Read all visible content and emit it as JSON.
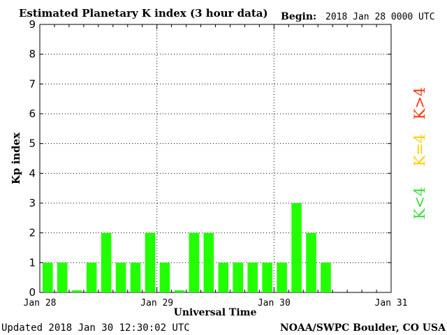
{
  "chart_data": {
    "type": "bar",
    "title": "Estimated Planetary K index (3 hour data)",
    "begin_label": "Begin:",
    "begin_value": "2018 Jan 28 0000 UTC",
    "xlabel": "Universal Time",
    "ylabel": "Kp index",
    "ylim": [
      0,
      9
    ],
    "y_ticks": [
      "0",
      "1",
      "2",
      "3",
      "4",
      "5",
      "6",
      "7",
      "8",
      "9"
    ],
    "x_tick_labels": [
      "Jan 28",
      "Jan 29",
      "Jan 30",
      "Jan 31"
    ],
    "grid": "dotted",
    "bar_color": "#22ff00",
    "values": [
      1,
      1,
      0.07,
      1,
      2,
      1,
      1,
      2,
      1,
      0.07,
      2,
      2,
      1,
      1,
      1,
      1,
      1,
      3,
      2,
      1
    ],
    "legend": [
      {
        "label": "K<4",
        "color": "#33dd33"
      },
      {
        "label": "K=4",
        "color": "#ffcc00"
      },
      {
        "label": "K>4",
        "color": "#ff3300"
      }
    ]
  },
  "footer": {
    "updated": "Updated 2018 Jan 30 12:30:02 UTC",
    "source": "NOAA/SWPC Boulder, CO USA"
  }
}
